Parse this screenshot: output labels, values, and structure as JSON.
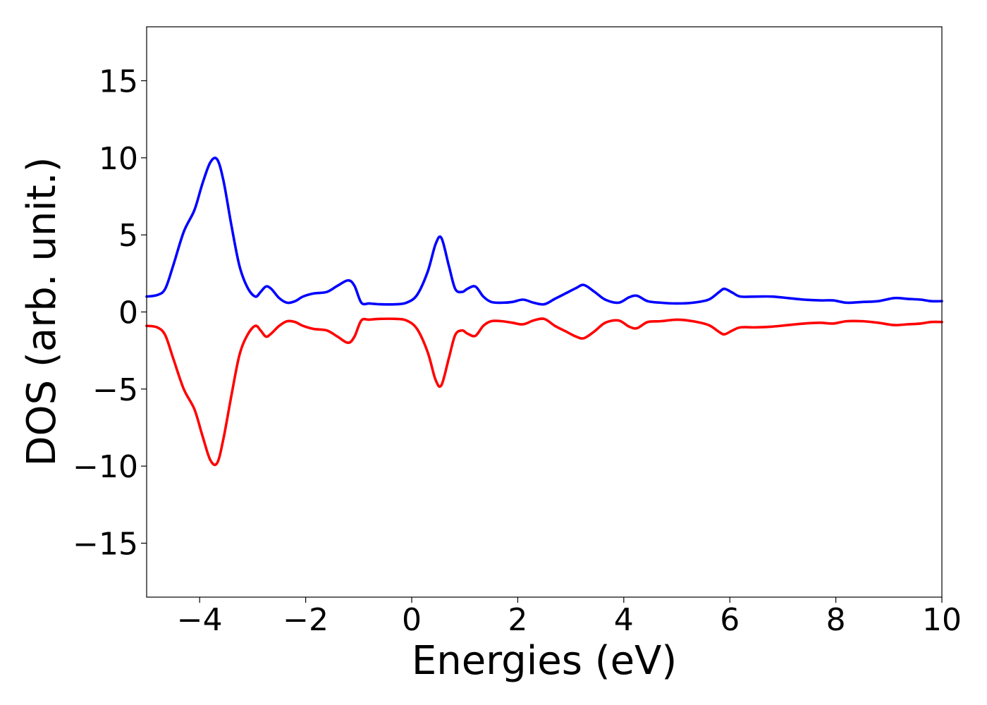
{
  "chart_data": {
    "type": "line",
    "title": "",
    "xlabel": "Energies (eV)",
    "ylabel": "DOS (arb. unit.)",
    "xlim": [
      -5,
      10
    ],
    "ylim": [
      -18.5,
      18.5
    ],
    "xticks": [
      -4,
      -2,
      0,
      2,
      4,
      6,
      8,
      10
    ],
    "xtick_labels": [
      "−4",
      "−2",
      "0",
      "2",
      "4",
      "6",
      "8",
      "10"
    ],
    "yticks": [
      15,
      10,
      5,
      0,
      -5,
      -10,
      -15
    ],
    "ytick_labels": [
      "15",
      "10",
      "5",
      "0",
      "−5",
      "−10",
      "−15"
    ],
    "grid": false,
    "legend": "none",
    "series": [
      {
        "color": "#0000ff",
        "x": [
          -5.0,
          -4.8,
          -4.65,
          -4.5,
          -4.3,
          -4.1,
          -3.95,
          -3.8,
          -3.67,
          -3.55,
          -3.4,
          -3.25,
          -3.1,
          -2.95,
          -2.85,
          -2.75,
          -2.65,
          -2.5,
          -2.35,
          -2.2,
          -2.05,
          -1.85,
          -1.6,
          -1.4,
          -1.2,
          -1.08,
          -0.95,
          -0.8,
          -0.6,
          -0.3,
          -0.1,
          0.1,
          0.3,
          0.45,
          0.56,
          0.7,
          0.82,
          0.95,
          1.05,
          1.2,
          1.35,
          1.5,
          1.7,
          1.9,
          2.1,
          2.3,
          2.5,
          2.7,
          2.9,
          3.1,
          3.25,
          3.45,
          3.65,
          3.9,
          4.1,
          4.25,
          4.45,
          4.7,
          5.0,
          5.3,
          5.6,
          5.8,
          5.9,
          6.05,
          6.2,
          6.5,
          6.8,
          7.1,
          7.4,
          7.7,
          7.95,
          8.2,
          8.5,
          8.8,
          9.1,
          9.35,
          9.6,
          9.8,
          10.0
        ],
        "y": [
          1.0,
          1.1,
          1.5,
          3.0,
          5.2,
          6.6,
          8.3,
          9.7,
          9.9,
          8.5,
          5.6,
          3.0,
          1.6,
          1.0,
          1.3,
          1.65,
          1.5,
          0.9,
          0.6,
          0.7,
          1.0,
          1.2,
          1.3,
          1.7,
          2.05,
          1.7,
          0.6,
          0.55,
          0.5,
          0.5,
          0.6,
          1.1,
          2.6,
          4.4,
          4.8,
          3.0,
          1.5,
          1.3,
          1.5,
          1.65,
          1.0,
          0.65,
          0.6,
          0.65,
          0.8,
          0.6,
          0.5,
          0.85,
          1.2,
          1.55,
          1.75,
          1.3,
          0.8,
          0.6,
          0.95,
          1.05,
          0.7,
          0.6,
          0.55,
          0.6,
          0.8,
          1.3,
          1.5,
          1.25,
          1.0,
          1.0,
          1.0,
          0.9,
          0.8,
          0.75,
          0.75,
          0.6,
          0.65,
          0.7,
          0.9,
          0.85,
          0.8,
          0.7,
          0.7
        ]
      },
      {
        "color": "#ff0000",
        "x": [
          -5.0,
          -4.8,
          -4.65,
          -4.5,
          -4.3,
          -4.1,
          -3.95,
          -3.8,
          -3.67,
          -3.55,
          -3.4,
          -3.25,
          -3.1,
          -2.95,
          -2.85,
          -2.75,
          -2.65,
          -2.5,
          -2.35,
          -2.2,
          -2.05,
          -1.85,
          -1.6,
          -1.4,
          -1.2,
          -1.08,
          -0.95,
          -0.8,
          -0.6,
          -0.3,
          -0.1,
          0.1,
          0.3,
          0.45,
          0.56,
          0.7,
          0.82,
          0.95,
          1.05,
          1.2,
          1.35,
          1.5,
          1.7,
          1.9,
          2.1,
          2.3,
          2.5,
          2.7,
          2.9,
          3.1,
          3.25,
          3.45,
          3.65,
          3.9,
          4.1,
          4.25,
          4.45,
          4.7,
          5.0,
          5.3,
          5.6,
          5.8,
          5.9,
          6.05,
          6.2,
          6.5,
          6.8,
          7.1,
          7.4,
          7.7,
          7.95,
          8.2,
          8.5,
          8.8,
          9.1,
          9.35,
          9.6,
          9.8,
          10.0
        ],
        "y": [
          -0.9,
          -1.0,
          -1.5,
          -3.0,
          -5.0,
          -6.3,
          -8.0,
          -9.6,
          -9.8,
          -8.2,
          -5.4,
          -2.8,
          -1.5,
          -0.9,
          -1.2,
          -1.6,
          -1.4,
          -0.9,
          -0.6,
          -0.65,
          -0.9,
          -1.1,
          -1.2,
          -1.6,
          -2.0,
          -1.6,
          -0.55,
          -0.5,
          -0.45,
          -0.45,
          -0.55,
          -1.1,
          -2.6,
          -4.4,
          -4.75,
          -3.0,
          -1.5,
          -1.2,
          -1.4,
          -1.55,
          -0.9,
          -0.6,
          -0.6,
          -0.7,
          -0.8,
          -0.55,
          -0.45,
          -0.9,
          -1.25,
          -1.6,
          -1.7,
          -1.25,
          -0.7,
          -0.55,
          -0.95,
          -1.05,
          -0.65,
          -0.6,
          -0.5,
          -0.6,
          -0.85,
          -1.3,
          -1.45,
          -1.2,
          -1.0,
          -1.0,
          -0.95,
          -0.85,
          -0.75,
          -0.7,
          -0.75,
          -0.6,
          -0.6,
          -0.7,
          -0.85,
          -0.8,
          -0.75,
          -0.65,
          -0.65
        ]
      }
    ]
  }
}
